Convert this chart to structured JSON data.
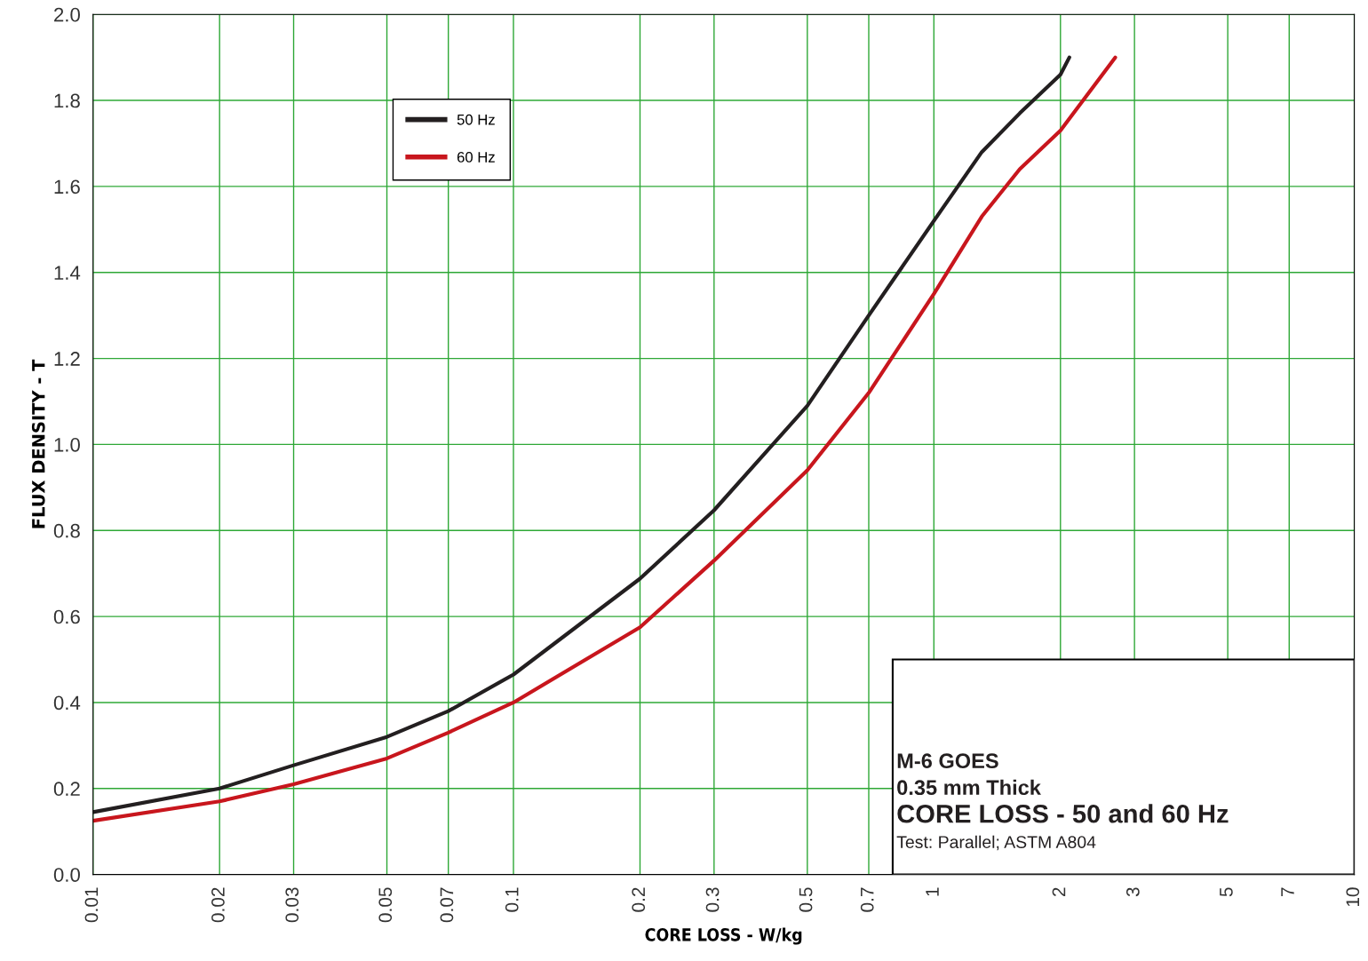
{
  "chart_data": {
    "type": "line",
    "xlabel": "CORE LOSS - W/kg",
    "ylabel": "FLUX DENSITY - T",
    "log": "x",
    "xlim": [
      0.01,
      10
    ],
    "xticks": [
      0.01,
      0.02,
      0.03,
      0.05,
      0.07,
      0.1,
      0.2,
      0.3,
      0.5,
      0.7,
      1,
      2,
      3,
      5,
      7,
      10
    ],
    "ylim": [
      0.0,
      2.0
    ],
    "yticks": [
      {
        "value": 0.0,
        "label": "0.0"
      },
      0.2,
      0.4,
      0.6,
      0.8,
      {
        "value": 1.0,
        "label": "1.0"
      },
      1.2,
      1.4,
      1.6,
      1.8,
      {
        "value": 2.0,
        "label": "2.0"
      }
    ],
    "grid": true,
    "legend": "top left",
    "line_style": "solid",
    "marker": "none",
    "series": [
      {
        "name": "50 Hz",
        "color": "#231f20",
        "x": [
          0.01,
          0.02,
          0.03,
          0.05,
          0.07,
          0.1,
          0.2,
          0.3,
          0.5,
          0.7,
          1.0,
          1.3,
          1.6,
          2.0,
          2.1
        ],
        "values": [
          0.145,
          0.2,
          0.254,
          0.32,
          0.38,
          0.465,
          0.688,
          0.847,
          1.09,
          1.3,
          1.52,
          1.68,
          1.77,
          1.86,
          1.9
        ]
      },
      {
        "name": "60 Hz",
        "color": "#c8161d",
        "x": [
          0.01,
          0.02,
          0.03,
          0.05,
          0.07,
          0.1,
          0.2,
          0.3,
          0.5,
          0.7,
          1.0,
          1.3,
          1.6,
          2.0,
          2.7
        ],
        "values": [
          0.125,
          0.17,
          0.21,
          0.27,
          0.33,
          0.4,
          0.575,
          0.73,
          0.94,
          1.12,
          1.35,
          1.53,
          1.64,
          1.73,
          1.9
        ]
      }
    ],
    "annotations": [
      "M-6 GOES",
      "0.35 mm Thick",
      "CORE LOSS - 50 and 60 Hz",
      "Test: Parallel; ASTM A804"
    ]
  }
}
